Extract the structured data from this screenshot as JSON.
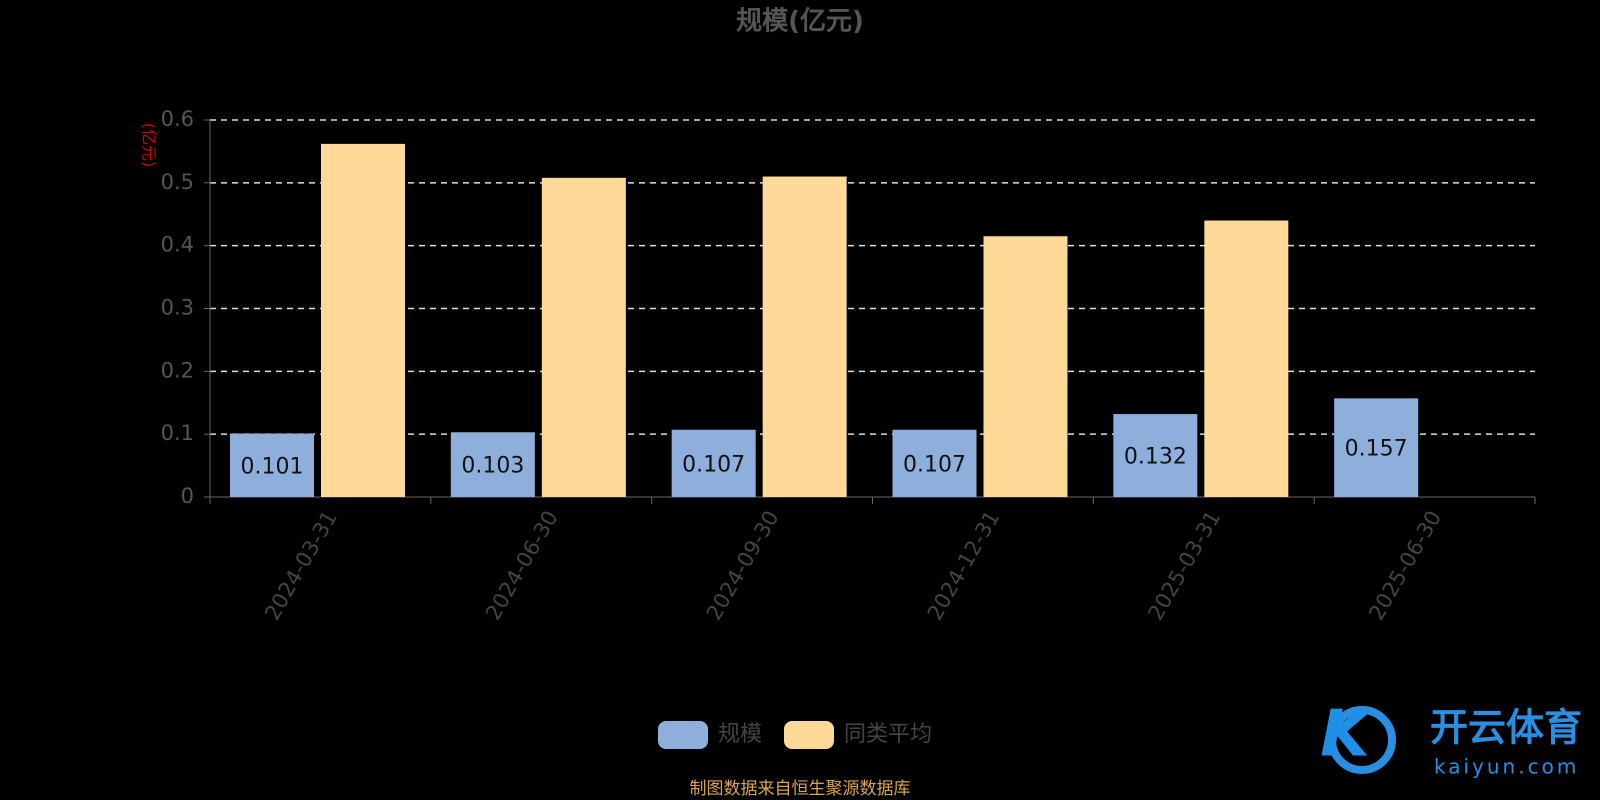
{
  "chart_data": {
    "type": "bar",
    "title": "规模(亿元)",
    "y_label": "(亿元)",
    "categories": [
      "2024-03-31",
      "2024-06-30",
      "2024-09-30",
      "2024-12-31",
      "2025-03-31",
      "2025-06-30"
    ],
    "series": [
      {
        "name": "规模",
        "color": "#8eaedc",
        "values": [
          0.101,
          0.103,
          0.107,
          0.107,
          0.132,
          0.157
        ]
      },
      {
        "name": "同类平均",
        "color": "#ffd998",
        "values": [
          0.562,
          0.508,
          0.51,
          0.415,
          0.44,
          null
        ]
      }
    ],
    "ylim": [
      0,
      0.6
    ],
    "yticks": [
      0,
      0.1,
      0.2,
      0.3,
      0.4,
      0.5,
      0.6
    ],
    "grid": true,
    "legend": "bottom",
    "source": "制图数据来自恒生聚源数据库"
  },
  "watermark": {
    "brand": "开云体育",
    "url": "kaiyun.com"
  }
}
